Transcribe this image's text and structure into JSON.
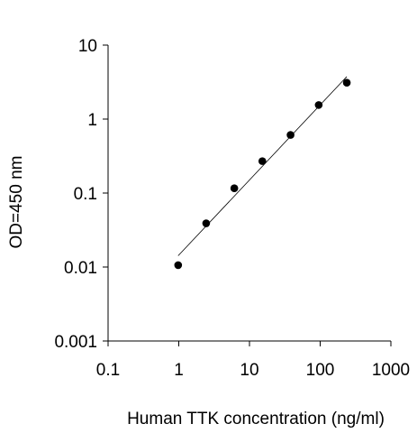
{
  "chart_data": {
    "type": "scatter",
    "xlabel": "Human TTK concentration (ng/ml)",
    "ylabel": "OD=450 nm",
    "xscale": "log",
    "yscale": "log",
    "xlim": [
      0.1,
      1000
    ],
    "ylim": [
      0.001,
      10
    ],
    "x_ticks": [
      "0.1",
      "1",
      "10",
      "100",
      "1000"
    ],
    "y_ticks": [
      "0.001",
      "0.01",
      "0.1",
      "1",
      "10"
    ],
    "grid": false,
    "legend": "none",
    "series": [
      {
        "x": [
          0.98,
          2.44,
          6.1,
          15.2,
          38.1,
          95.3,
          238
        ],
        "y": [
          0.0106,
          0.039,
          0.116,
          0.27,
          0.61,
          1.55,
          3.1
        ]
      }
    ],
    "fit_line": {
      "x": [
        0.98,
        238
      ],
      "y": [
        0.0142,
        3.75
      ]
    },
    "colors": {
      "marker": "#000000",
      "line": "#000000",
      "axis": "#000000"
    }
  }
}
